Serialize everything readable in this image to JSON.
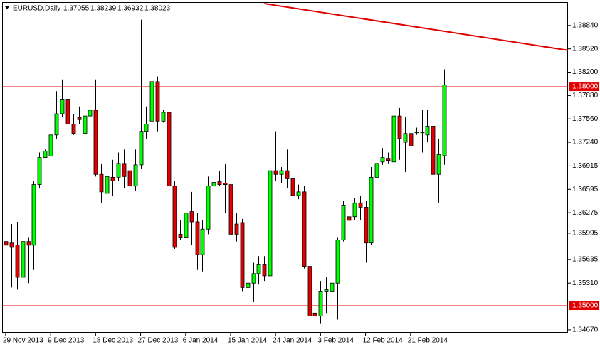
{
  "chart_data": {
    "type": "candlestick",
    "title": "EURUSD,Daily",
    "categories": [
      "29 Nov 2013",
      null,
      null,
      null,
      null,
      null,
      null,
      null,
      "9 Dec 2013",
      null,
      null,
      null,
      null,
      null,
      null,
      null,
      "18 Dec 2013",
      null,
      null,
      null,
      null,
      null,
      null,
      null,
      "27 Dec 2013",
      null,
      null,
      null,
      null,
      null,
      null,
      null,
      "6 Jan 2014",
      null,
      null,
      null,
      null,
      null,
      null,
      null,
      "15 Jan 2014",
      null,
      null,
      null,
      null,
      null,
      null,
      null,
      "24 Jan 2014",
      null,
      null,
      null,
      null,
      null,
      null,
      null,
      "3 Feb 2014",
      null,
      null,
      null,
      null,
      null,
      null,
      null,
      "12 Feb 2014",
      null,
      null,
      null,
      null,
      null,
      null,
      null,
      "21 Feb 2014",
      null,
      null,
      null,
      null,
      null,
      null
    ],
    "open": [
      1.3588,
      1.3586,
      1.3583,
      1.3539,
      1.3588,
      1.3583,
      1.3666,
      1.3703,
      1.3705,
      1.3734,
      1.3763,
      1.3783,
      1.3749,
      1.3758,
      1.3736,
      1.376,
      1.3768,
      1.368,
      1.3654,
      1.3676,
      1.3676,
      1.3695,
      1.3685,
      1.3664,
      1.3693,
      1.3739,
      1.3753,
      1.3807,
      1.3753,
      1.3765,
      1.3664,
      1.3598,
      1.3593,
      1.3629,
      1.3615,
      1.357,
      1.3605,
      1.3664,
      1.367,
      1.3668,
      1.3666,
      1.3612,
      1.3614,
      1.3525,
      1.3531,
      1.3544,
      1.3557,
      1.3541,
      1.3685,
      1.368,
      1.3685,
      1.3674,
      1.3651,
      1.3656,
      1.3554,
      1.349,
      1.3486,
      1.352,
      1.352,
      1.3531,
      1.359,
      1.3622,
      1.3622,
      1.3641,
      1.3635,
      1.3586,
      1.3676,
      1.3697,
      1.3702,
      1.3697,
      1.376,
      1.3724,
      1.3736,
      1.3738,
      1.3738,
      1.3734,
      1.3746,
      1.368,
      1.37055
    ],
    "high": [
      1.3622,
      1.3612,
      1.3615,
      1.3607,
      1.3593,
      1.3671,
      1.371,
      1.3714,
      1.3739,
      1.3794,
      1.381,
      1.3802,
      1.3763,
      1.3773,
      1.3797,
      1.3792,
      1.381,
      1.3695,
      1.369,
      1.37,
      1.371,
      1.3714,
      1.3697,
      1.3714,
      1.3892,
      1.3773,
      1.3819,
      1.3814,
      1.3768,
      1.3773,
      1.3671,
      1.3617,
      1.3646,
      1.3656,
      1.3627,
      1.3617,
      1.3677,
      1.3674,
      1.3685,
      1.3695,
      1.368,
      1.3627,
      1.3619,
      1.3537,
      1.3559,
      1.3568,
      1.3568,
      1.3697,
      1.3739,
      1.369,
      1.3714,
      1.368,
      1.3666,
      1.3664,
      1.3559,
      1.35,
      1.3534,
      1.3539,
      1.3554,
      1.3593,
      1.3644,
      1.3641,
      1.3648,
      1.3651,
      1.3644,
      1.369,
      1.3714,
      1.3716,
      1.371,
      1.3768,
      1.3771,
      1.3758,
      1.3763,
      1.3744,
      1.3768,
      1.3768,
      1.3758,
      1.3729,
      1.38239
    ],
    "low": [
      1.3529,
      1.3525,
      1.3522,
      1.3525,
      1.3531,
      1.3549,
      1.3661,
      1.3703,
      1.3693,
      1.3729,
      1.3758,
      1.3739,
      1.3734,
      1.3749,
      1.3729,
      1.3753,
      1.3677,
      1.3641,
      1.3625,
      1.3651,
      1.3671,
      1.3661,
      1.3656,
      1.3658,
      1.3687,
      1.3729,
      1.3749,
      1.3739,
      1.3751,
      1.3627,
      1.3578,
      1.359,
      1.3588,
      1.3583,
      1.3549,
      1.3547,
      1.3598,
      1.3658,
      1.3664,
      1.3627,
      1.3578,
      1.3588,
      1.352,
      1.352,
      1.3505,
      1.3529,
      1.3534,
      1.3537,
      1.3671,
      1.3668,
      1.3661,
      1.3627,
      1.3646,
      1.3551,
      1.3476,
      1.3481,
      1.3476,
      1.349,
      1.3483,
      1.3481,
      1.3588,
      1.3615,
      1.3617,
      1.3617,
      1.3559,
      1.3583,
      1.3671,
      1.3693,
      1.3695,
      1.3693,
      1.37,
      1.3683,
      1.37,
      1.3734,
      1.371,
      1.3724,
      1.3658,
      1.3641,
      1.36932
    ],
    "close": [
      1.3583,
      1.358,
      1.3539,
      1.3588,
      1.3583,
      1.3666,
      1.3703,
      1.3712,
      1.3734,
      1.3763,
      1.3783,
      1.3749,
      1.3736,
      1.3755,
      1.376,
      1.3768,
      1.368,
      1.3656,
      1.3677,
      1.3671,
      1.3695,
      1.3677,
      1.3664,
      1.3693,
      1.3739,
      1.3749,
      1.3807,
      1.3753,
      1.3765,
      1.3664,
      1.358,
      1.3593,
      1.3627,
      1.3615,
      1.357,
      1.3605,
      1.3664,
      1.3669,
      1.3666,
      1.3666,
      1.3598,
      1.3598,
      1.3525,
      1.3531,
      1.3544,
      1.3557,
      1.3541,
      1.3685,
      1.368,
      1.3685,
      1.3674,
      1.3651,
      1.3656,
      1.3554,
      1.3486,
      1.3486,
      1.352,
      1.3522,
      1.3531,
      1.359,
      1.3637,
      1.3617,
      1.3641,
      1.3635,
      1.3586,
      1.3676,
      1.3695,
      1.3703,
      1.3699,
      1.376,
      1.3729,
      1.3736,
      1.3719,
      1.3738,
      1.3738,
      1.3746,
      1.368,
      1.3707,
      1.38023
    ],
    "up_color": "#00ff00",
    "down_color": "#e00000",
    "xlim": [
      -0.5,
      100
    ],
    "ylim": [
      1.3463,
      1.3915
    ],
    "yticks": [
      {
        "value": 1.3884,
        "label": "1.38840"
      },
      {
        "value": 1.3852,
        "label": "1.38520"
      },
      {
        "value": 1.382,
        "label": "1.38200"
      },
      {
        "value": 1.3788,
        "label": "1.37880"
      },
      {
        "value": 1.3756,
        "label": "1.37560"
      },
      {
        "value": 1.3724,
        "label": "1.37240"
      },
      {
        "value": 1.36915,
        "label": "1.36915"
      },
      {
        "value": 1.36595,
        "label": "1.36595"
      },
      {
        "value": 1.36275,
        "label": "1.36275"
      },
      {
        "value": 1.35995,
        "label": "1.35995"
      },
      {
        "value": 1.35635,
        "label": "1.35635"
      },
      {
        "value": 1.3531,
        "label": "1.35310"
      },
      {
        "value": 1.3467,
        "label": "1.34670"
      }
    ],
    "hlines": [
      {
        "value": 1.38,
        "label": "1.38000",
        "color": "#e00000"
      },
      {
        "value": 1.35,
        "label": "1.35000",
        "color": "#e00000"
      }
    ],
    "trendline": {
      "x": [
        46,
        100
      ],
      "y": [
        1.3914,
        1.385
      ],
      "color": "#e00000"
    }
  }
}
